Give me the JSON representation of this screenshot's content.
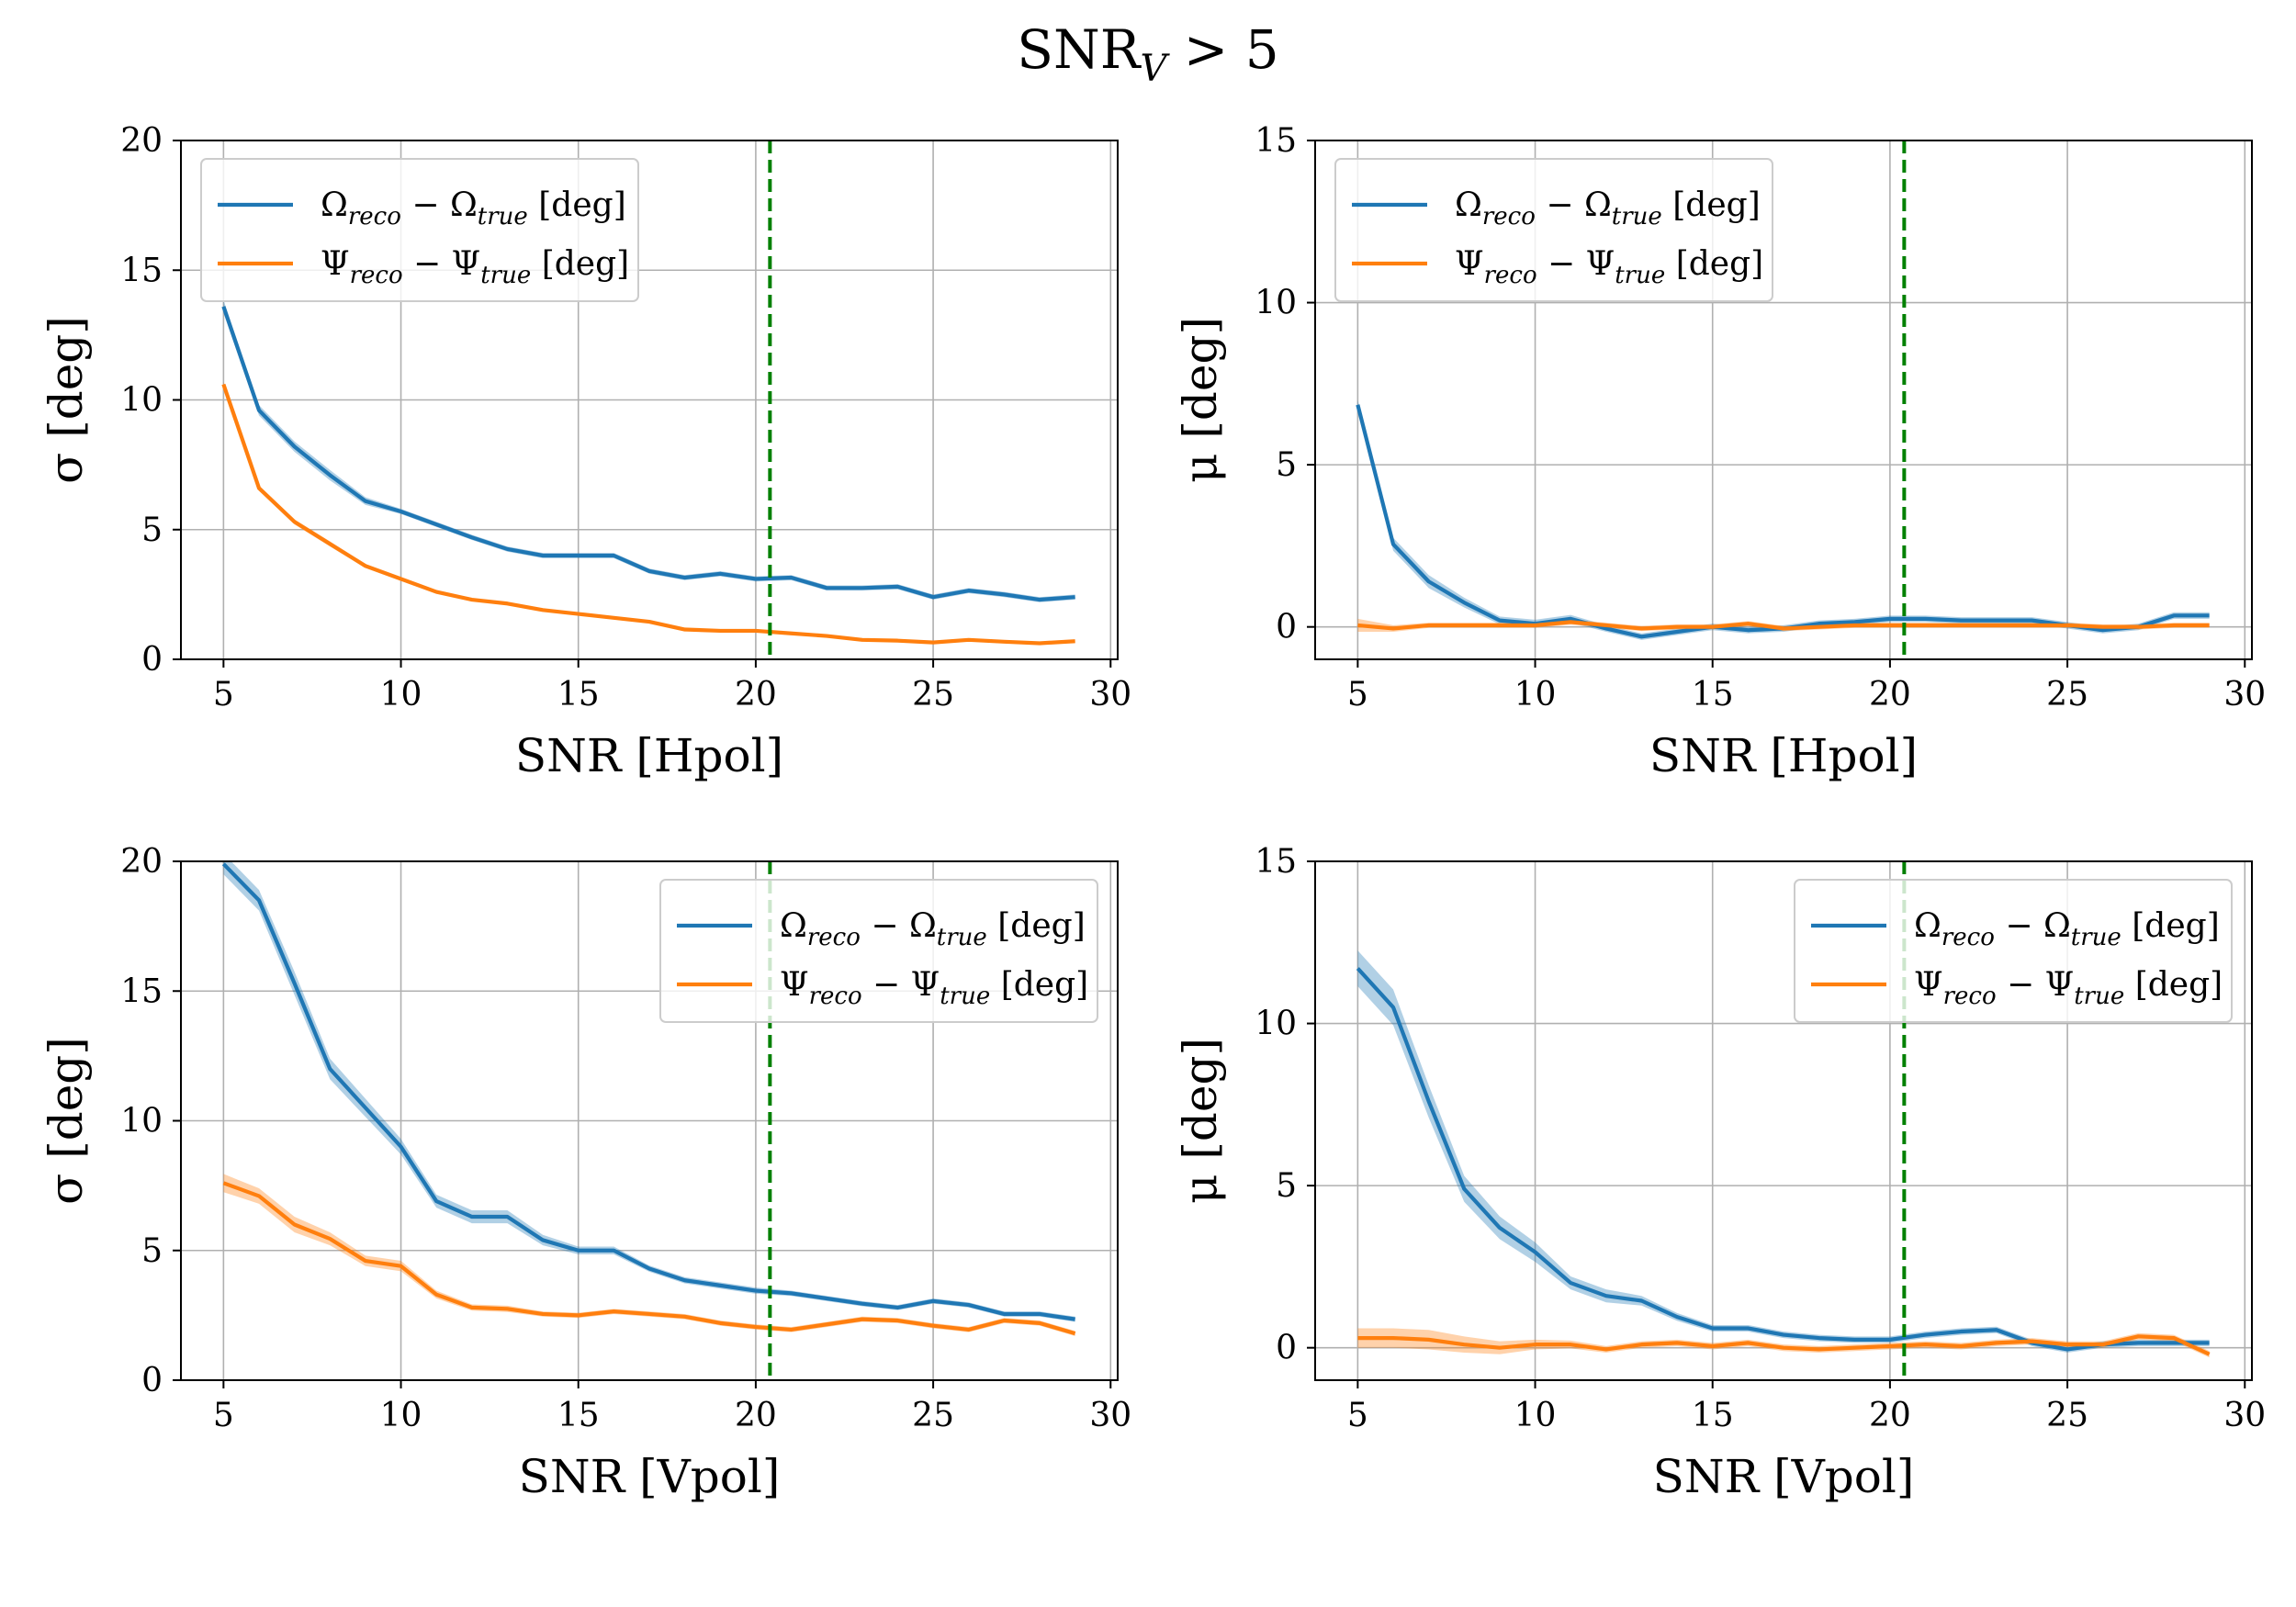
{
  "figure": {
    "suptitle_main": "SNR",
    "suptitle_sub": "V",
    "suptitle_rest": " > 5"
  },
  "chart_data": [
    {
      "type": "line",
      "panel": "top-left",
      "xlabel": "SNR [Hpol]",
      "ylabel": "σ [deg]",
      "xlim": [
        3.8,
        30.2
      ],
      "ylim": [
        0,
        20
      ],
      "xticks": [
        5,
        10,
        15,
        20,
        25,
        30
      ],
      "yticks": [
        0,
        5,
        10,
        15,
        20
      ],
      "grid": true,
      "legend_position": "upper left",
      "threshold_line": {
        "x": 20.4,
        "style": "dashed",
        "color": "#008000"
      },
      "x": [
        5,
        6,
        7,
        8,
        9,
        10,
        11,
        12,
        13,
        14,
        15,
        16,
        17,
        18,
        19,
        20,
        21,
        22,
        23,
        24,
        25,
        26,
        27,
        28,
        29
      ],
      "series": [
        {
          "name": "Ω_reco − Ω_true [deg]",
          "label_main": "Ω",
          "label_sub1": "reco",
          "label_mid": " − Ω",
          "label_sub2": "true",
          "label_tail": " [deg]",
          "color": "#1f77b4",
          "values": [
            13.6,
            9.6,
            8.2,
            7.1,
            6.1,
            5.7,
            5.2,
            4.7,
            4.25,
            4.0,
            4.0,
            4.0,
            3.4,
            3.15,
            3.3,
            3.1,
            3.15,
            2.75,
            2.75,
            2.8,
            2.4,
            2.65,
            2.5,
            2.3,
            2.4
          ],
          "band": [
            0.25,
            0.2,
            0.2,
            0.2,
            0.15,
            0.1,
            0.1,
            0.1,
            0.1,
            0.1,
            0.1,
            0.1,
            0.1,
            0.1,
            0.1,
            0.1,
            0.1,
            0.1,
            0.1,
            0.1,
            0.1,
            0.1,
            0.1,
            0.1,
            0.1
          ]
        },
        {
          "name": "Ψ_reco − Ψ_true [deg]",
          "label_main": "Ψ",
          "label_sub1": "reco",
          "label_mid": " − Ψ",
          "label_sub2": "true",
          "label_tail": " [deg]",
          "color": "#ff7f0e",
          "values": [
            10.6,
            6.6,
            5.3,
            4.45,
            3.6,
            3.1,
            2.6,
            2.3,
            2.15,
            1.9,
            1.75,
            1.6,
            1.45,
            1.15,
            1.1,
            1.1,
            1.0,
            0.9,
            0.75,
            0.72,
            0.65,
            0.75,
            0.68,
            0.62,
            0.7
          ],
          "band": [
            0.1,
            0.1,
            0.1,
            0.1,
            0.08,
            0.08,
            0.06,
            0.06,
            0.06,
            0.06,
            0.05,
            0.05,
            0.05,
            0.05,
            0.05,
            0.05,
            0.05,
            0.05,
            0.05,
            0.05,
            0.05,
            0.05,
            0.05,
            0.05,
            0.05
          ]
        }
      ]
    },
    {
      "type": "line",
      "panel": "top-right",
      "xlabel": "SNR [Hpol]",
      "ylabel": "μ [deg]",
      "xlim": [
        3.8,
        30.2
      ],
      "ylim": [
        -1,
        15
      ],
      "xticks": [
        5,
        10,
        15,
        20,
        25,
        30
      ],
      "yticks": [
        0,
        5,
        10,
        15
      ],
      "grid": true,
      "legend_position": "upper left",
      "threshold_line": {
        "x": 20.4,
        "style": "dashed",
        "color": "#008000"
      },
      "x": [
        5,
        6,
        7,
        8,
        9,
        10,
        11,
        12,
        13,
        14,
        15,
        16,
        17,
        18,
        19,
        20,
        21,
        22,
        23,
        24,
        25,
        26,
        27,
        28,
        29
      ],
      "series": [
        {
          "name": "Ω_reco − Ω_true [deg]",
          "label_main": "Ω",
          "label_sub1": "reco",
          "label_mid": " − Ω",
          "label_sub2": "true",
          "label_tail": " [deg]",
          "color": "#1f77b4",
          "values": [
            6.85,
            2.55,
            1.4,
            0.75,
            0.2,
            0.1,
            0.25,
            -0.05,
            -0.3,
            -0.15,
            0.0,
            -0.1,
            -0.05,
            0.1,
            0.15,
            0.25,
            0.25,
            0.2,
            0.2,
            0.2,
            0.05,
            -0.1,
            0.0,
            0.35,
            0.35
          ],
          "band": [
            0.15,
            0.2,
            0.2,
            0.15,
            0.12,
            0.12,
            0.12,
            0.1,
            0.1,
            0.1,
            0.1,
            0.1,
            0.1,
            0.1,
            0.1,
            0.1,
            0.1,
            0.1,
            0.1,
            0.1,
            0.1,
            0.1,
            0.1,
            0.1,
            0.1
          ]
        },
        {
          "name": "Ψ_reco − Ψ_true [deg]",
          "label_main": "Ψ",
          "label_sub1": "reco",
          "label_mid": " − Ψ",
          "label_sub2": "true",
          "label_tail": " [deg]",
          "color": "#ff7f0e",
          "values": [
            0.05,
            -0.05,
            0.05,
            0.05,
            0.05,
            0.05,
            0.15,
            0.05,
            -0.05,
            0.0,
            0.0,
            0.1,
            -0.05,
            0.0,
            0.05,
            0.05,
            0.05,
            0.05,
            0.05,
            0.05,
            0.05,
            0.0,
            0.0,
            0.05,
            0.05
          ],
          "band": [
            0.2,
            0.1,
            0.08,
            0.08,
            0.08,
            0.08,
            0.08,
            0.08,
            0.08,
            0.08,
            0.08,
            0.08,
            0.08,
            0.08,
            0.08,
            0.08,
            0.08,
            0.08,
            0.08,
            0.08,
            0.08,
            0.08,
            0.08,
            0.08,
            0.08
          ]
        }
      ]
    },
    {
      "type": "line",
      "panel": "bottom-left",
      "xlabel": "SNR [Vpol]",
      "ylabel": "σ [deg]",
      "xlim": [
        3.8,
        30.2
      ],
      "ylim": [
        0,
        20
      ],
      "xticks": [
        5,
        10,
        15,
        20,
        25,
        30
      ],
      "yticks": [
        0,
        5,
        10,
        15,
        20
      ],
      "grid": true,
      "legend_position": "upper right",
      "threshold_line": {
        "x": 20.4,
        "style": "dashed",
        "color": "#008000"
      },
      "x": [
        5,
        6,
        7,
        8,
        9,
        10,
        11,
        12,
        13,
        14,
        15,
        16,
        17,
        18,
        19,
        20,
        21,
        22,
        23,
        24,
        25,
        26,
        27,
        28,
        29
      ],
      "series": [
        {
          "name": "Ω_reco − Ω_true [deg]",
          "label_main": "Ω",
          "label_sub1": "reco",
          "label_mid": " − Ω",
          "label_sub2": "true",
          "label_tail": " [deg]",
          "color": "#1f77b4",
          "values": [
            19.9,
            18.5,
            15.3,
            12.0,
            10.5,
            9.0,
            6.9,
            6.3,
            6.3,
            5.4,
            5.0,
            5.0,
            4.3,
            3.85,
            3.65,
            3.45,
            3.35,
            3.15,
            2.95,
            2.8,
            3.05,
            2.9,
            2.55,
            2.55,
            2.35
          ],
          "band": [
            0.4,
            0.4,
            0.45,
            0.4,
            0.35,
            0.3,
            0.25,
            0.25,
            0.25,
            0.2,
            0.15,
            0.15,
            0.12,
            0.12,
            0.12,
            0.12,
            0.1,
            0.1,
            0.1,
            0.1,
            0.1,
            0.1,
            0.1,
            0.1,
            0.1
          ]
        },
        {
          "name": "Ψ_reco − Ψ_true [deg]",
          "label_main": "Ψ",
          "label_sub1": "reco",
          "label_mid": " − Ψ",
          "label_sub2": "true",
          "label_tail": " [deg]",
          "color": "#ff7f0e",
          "values": [
            7.6,
            7.1,
            6.0,
            5.45,
            4.6,
            4.4,
            3.3,
            2.8,
            2.75,
            2.55,
            2.5,
            2.65,
            2.55,
            2.45,
            2.2,
            2.05,
            1.95,
            2.15,
            2.35,
            2.3,
            2.1,
            1.95,
            2.3,
            2.2,
            1.8
          ],
          "band": [
            0.35,
            0.3,
            0.3,
            0.25,
            0.2,
            0.2,
            0.15,
            0.12,
            0.12,
            0.1,
            0.1,
            0.1,
            0.1,
            0.1,
            0.1,
            0.1,
            0.1,
            0.1,
            0.1,
            0.1,
            0.1,
            0.1,
            0.1,
            0.1,
            0.1
          ]
        }
      ]
    },
    {
      "type": "line",
      "panel": "bottom-right",
      "xlabel": "SNR [Vpol]",
      "ylabel": "μ [deg]",
      "xlim": [
        3.8,
        30.2
      ],
      "ylim": [
        -1,
        15
      ],
      "xticks": [
        5,
        10,
        15,
        20,
        25,
        30
      ],
      "yticks": [
        0,
        5,
        10,
        15
      ],
      "grid": true,
      "legend_position": "upper right",
      "threshold_line": {
        "x": 20.4,
        "style": "dashed",
        "color": "#008000"
      },
      "x": [
        5,
        6,
        7,
        8,
        9,
        10,
        11,
        12,
        13,
        14,
        15,
        16,
        17,
        18,
        19,
        20,
        21,
        22,
        23,
        24,
        25,
        26,
        27,
        28,
        29
      ],
      "series": [
        {
          "name": "Ω_reco − Ω_true [deg]",
          "label_main": "Ω",
          "label_sub1": "reco",
          "label_mid": " − Ω",
          "label_sub2": "true",
          "label_tail": " [deg]",
          "color": "#1f77b4",
          "values": [
            11.7,
            10.5,
            7.6,
            4.9,
            3.7,
            2.95,
            2.0,
            1.6,
            1.45,
            0.95,
            0.6,
            0.6,
            0.4,
            0.3,
            0.25,
            0.25,
            0.4,
            0.5,
            0.55,
            0.15,
            -0.05,
            0.1,
            0.15,
            0.15,
            0.15
          ],
          "band": [
            0.55,
            0.55,
            0.5,
            0.4,
            0.35,
            0.3,
            0.2,
            0.2,
            0.15,
            0.12,
            0.1,
            0.1,
            0.1,
            0.1,
            0.1,
            0.1,
            0.1,
            0.1,
            0.1,
            0.1,
            0.1,
            0.1,
            0.1,
            0.1,
            0.1
          ]
        },
        {
          "name": "Ψ_reco − Ψ_true [deg]",
          "label_main": "Ψ",
          "label_sub1": "reco",
          "label_mid": " − Ψ",
          "label_sub2": "true",
          "label_tail": " [deg]",
          "color": "#ff7f0e",
          "values": [
            0.3,
            0.3,
            0.25,
            0.1,
            0.0,
            0.1,
            0.1,
            -0.05,
            0.1,
            0.15,
            0.05,
            0.15,
            0.0,
            -0.05,
            0.0,
            0.05,
            0.1,
            0.05,
            0.15,
            0.2,
            0.1,
            0.1,
            0.35,
            0.3,
            -0.2
          ],
          "band": [
            0.3,
            0.3,
            0.3,
            0.25,
            0.2,
            0.15,
            0.12,
            0.1,
            0.1,
            0.1,
            0.1,
            0.1,
            0.1,
            0.1,
            0.1,
            0.1,
            0.1,
            0.1,
            0.1,
            0.1,
            0.1,
            0.1,
            0.1,
            0.1,
            0.1
          ]
        }
      ]
    }
  ]
}
